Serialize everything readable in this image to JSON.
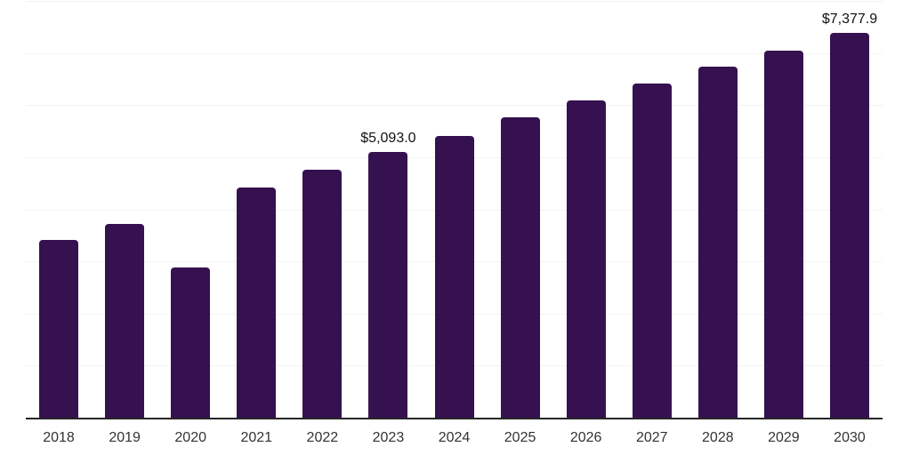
{
  "chart_data": {
    "type": "bar",
    "title": "",
    "xlabel": "",
    "ylabel": "",
    "categories": [
      "2018",
      "2019",
      "2020",
      "2021",
      "2022",
      "2023",
      "2024",
      "2025",
      "2026",
      "2027",
      "2028",
      "2029",
      "2030"
    ],
    "values": [
      3410,
      3720,
      2880,
      4420,
      4760,
      5093.0,
      5410,
      5770,
      6090,
      6410,
      6740,
      7050,
      7377.9
    ],
    "value_labels": [
      "",
      "",
      "",
      "",
      "",
      "$5,093.0",
      "",
      "",
      "",
      "",
      "",
      "",
      "$7,377.9"
    ],
    "labeled_points": [
      {
        "category": "2023",
        "label": "$5,093.0",
        "value": 5093.0
      },
      {
        "category": "2030",
        "label": "$7,377.9",
        "value": 7377.9
      }
    ],
    "ylim": [
      0,
      8000
    ],
    "grid_interval": 1000,
    "grid_on": true,
    "y_axis_labels_visible": false,
    "legend_position": "none"
  },
  "colors": {
    "bar": "#36114F",
    "grid": "#F2F2F2",
    "axis": "#262626",
    "value_label": "#111111",
    "tick_label": "#333333",
    "background": "#FFFFFF"
  }
}
